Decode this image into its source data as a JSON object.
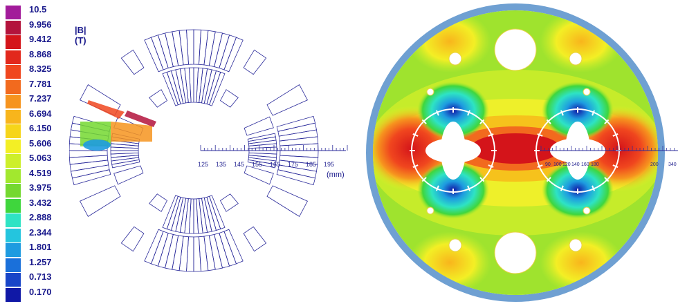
{
  "legend": {
    "unit_label": "|B|  (T)",
    "values": [
      "10.5",
      "9.956",
      "9.412",
      "8.868",
      "8.325",
      "7.781",
      "7.237",
      "6.694",
      "6.150",
      "5.606",
      "5.063",
      "4.519",
      "3.975",
      "3.432",
      "2.888",
      "2.344",
      "1.801",
      "1.257",
      "0.713",
      "0.170"
    ],
    "colors": [
      "#a21b9a",
      "#b3133c",
      "#d4141a",
      "#e2281c",
      "#f0461e",
      "#f26a1e",
      "#f6941e",
      "#f8b51c",
      "#f6d51a",
      "#f3ef25",
      "#cdef2a",
      "#a2e82e",
      "#74d830",
      "#3fd63d",
      "#2ee3c4",
      "#24c5de",
      "#1e9be0",
      "#1a70da",
      "#1845c8",
      "#1018a6"
    ]
  },
  "axis": {
    "ticks": [
      "125",
      "135",
      "145",
      "155",
      "165",
      "175",
      "185",
      "195"
    ],
    "unit": "(mm)"
  },
  "cross_axis": {
    "ticks": [
      "90",
      "100",
      "120",
      "140",
      "160",
      "180",
      "200",
      "340"
    ]
  }
}
